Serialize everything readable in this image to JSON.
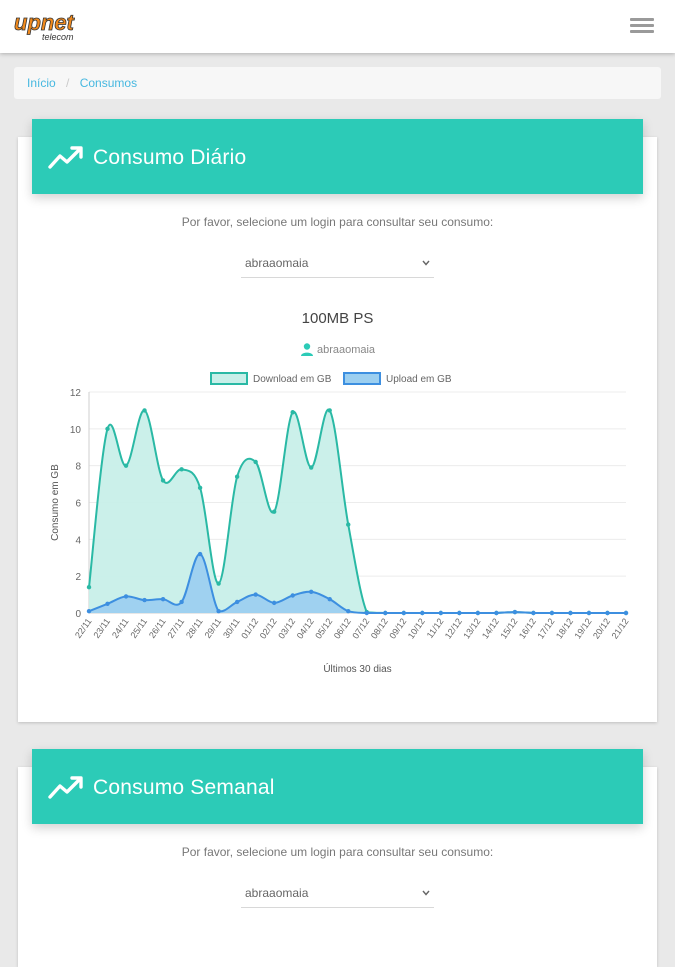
{
  "header": {
    "logo_main": "upnet",
    "logo_sub": "telecom"
  },
  "breadcrumb": {
    "home": "Início",
    "separator": "/",
    "current": "Consumos"
  },
  "daily": {
    "title": "Consumo Diário",
    "prompt": "Por favor, selecione um login para consultar seu consumo:",
    "login_value": "abraaomaia",
    "plan": "100MB PS",
    "user": "abraaomaia"
  },
  "weekly": {
    "title": "Consumo Semanal",
    "prompt": "Por favor, selecione um login para consultar seu consumo:",
    "login_value": "abraaomaia"
  },
  "colors": {
    "accent": "#2ccbb7",
    "download_line": "#2ab9a5",
    "download_fill": "#c8efe9",
    "upload_line": "#3d8fe0",
    "upload_fill": "#9ccff0"
  },
  "chart_data": {
    "type": "area",
    "xlabel": "Últimos 30 dias",
    "ylabel": "Consumo em GB",
    "ylim": [
      0,
      12
    ],
    "yticks": [
      0,
      2,
      4,
      6,
      8,
      10,
      12
    ],
    "legend_position": "top",
    "grid": true,
    "categories": [
      "22/11",
      "23/11",
      "24/11",
      "25/11",
      "26/11",
      "27/11",
      "28/11",
      "29/11",
      "30/11",
      "01/12",
      "02/12",
      "03/12",
      "04/12",
      "05/12",
      "06/12",
      "07/12",
      "08/12",
      "09/12",
      "10/12",
      "11/12",
      "12/12",
      "13/12",
      "14/12",
      "15/12",
      "16/12",
      "17/12",
      "18/12",
      "19/12",
      "20/12",
      "21/12"
    ],
    "series": [
      {
        "name": "Download em GB",
        "values": [
          1.4,
          10.0,
          8.0,
          11.0,
          7.2,
          7.8,
          6.8,
          1.6,
          7.4,
          8.2,
          5.5,
          10.9,
          7.9,
          11.0,
          4.8,
          0.05,
          0,
          0,
          0,
          0,
          0,
          0,
          0,
          0.05,
          0,
          0,
          0,
          0,
          0,
          0
        ]
      },
      {
        "name": "Upload em GB",
        "values": [
          0.1,
          0.5,
          0.9,
          0.7,
          0.75,
          0.6,
          3.2,
          0.1,
          0.6,
          1.0,
          0.55,
          0.95,
          1.15,
          0.75,
          0.1,
          0,
          0,
          0,
          0,
          0,
          0,
          0,
          0,
          0.05,
          0,
          0,
          0,
          0,
          0,
          0
        ]
      }
    ]
  }
}
